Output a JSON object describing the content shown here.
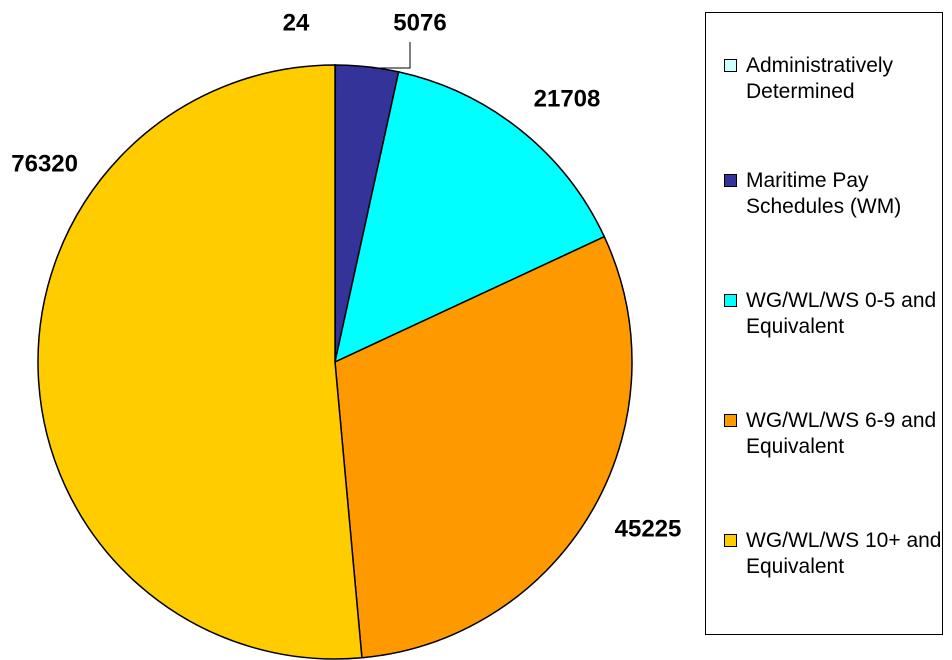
{
  "chart_data": {
    "type": "pie",
    "categories": [
      "Administratively Determined",
      "Maritime Pay Schedules (WM)",
      "WG/WL/WS 0-5 and Equivalent",
      "WG/WL/WS 6-9 and Equivalent",
      "WG/WL/WS 10+ and Equivalent"
    ],
    "values": [
      24,
      5076,
      21708,
      45225,
      76320
    ],
    "colors": [
      "#CCFFFF",
      "#333399",
      "#00FFFF",
      "#FF9900",
      "#FFCC00"
    ]
  }
}
